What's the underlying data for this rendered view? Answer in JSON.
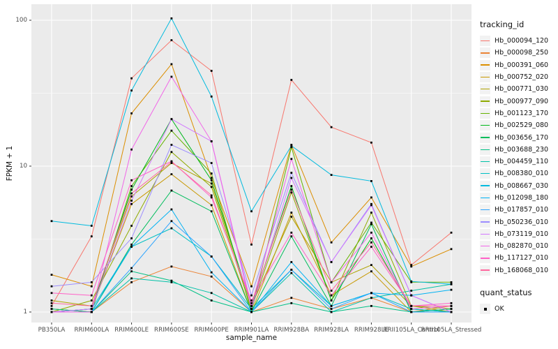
{
  "figure": {
    "ylabel": "FPKM + 1",
    "xlabel": "sample_name",
    "legend_title": "tracking_id",
    "quant_legend": {
      "title": "quant_status",
      "items": [
        {
          "label": "OK"
        }
      ]
    }
  },
  "chart_data": {
    "type": "line",
    "x_type": "categorical",
    "title": "",
    "xlabel": "sample_name",
    "ylabel": "FPKM + 1",
    "yscale": "log10",
    "y_ticks": [
      1,
      10,
      100
    ],
    "y_minor_ticks": [
      3.162,
      31.62
    ],
    "ylim": [
      0.85,
      128
    ],
    "grid": true,
    "legend_position": "right",
    "panel_bg": "#EBEBEB",
    "grid_color": "#FFFFFF",
    "point_color": "#000000",
    "point_shape": "square",
    "categories": [
      "PB350LA",
      "RRIM600LA",
      "RRIM600LE",
      "RRIM600SE",
      "RRIM600PE",
      "RRIM901LA",
      "RRIM928BA",
      "RRIM928LA",
      "RRIM928LE",
      "RRII105LA_Control",
      "RRII105LA_Stressed"
    ],
    "series": [
      {
        "name": "Hb_000094_120",
        "color": "#F8766D",
        "quant_status": "OK",
        "values": [
          1.1,
          3.3,
          40,
          73,
          45,
          2.9,
          39,
          18.5,
          14.5,
          2.1,
          3.5
        ]
      },
      {
        "name": "Hb_000098_250",
        "color": "#EB8335",
        "quant_status": "OK",
        "values": [
          1.05,
          1.0,
          1.6,
          2.05,
          1.75,
          1.0,
          1.25,
          1.05,
          1.25,
          1.0,
          1.1
        ]
      },
      {
        "name": "Hb_000391_060",
        "color": "#DB8E00",
        "quant_status": "OK",
        "values": [
          1.8,
          1.5,
          23,
          50,
          8.3,
          1.5,
          14,
          3.0,
          6.1,
          2.05,
          2.7
        ]
      },
      {
        "name": "Hb_000752_020",
        "color": "#C79800",
        "quant_status": "OK",
        "values": [
          1.0,
          1.05,
          5.5,
          8.8,
          5.4,
          1.0,
          4.8,
          1.3,
          1.9,
          1.0,
          1.05
        ]
      },
      {
        "name": "Hb_000771_030",
        "color": "#AEA200",
        "quant_status": "OK",
        "values": [
          1.2,
          1.1,
          6.2,
          10.5,
          7.6,
          1.1,
          4.5,
          1.6,
          2.1,
          1.1,
          1.0
        ]
      },
      {
        "name": "Hb_000977_090",
        "color": "#8FAA00",
        "quant_status": "OK",
        "values": [
          1.0,
          1.2,
          3.9,
          12.5,
          7.2,
          1.05,
          6.6,
          1.2,
          4.8,
          1.1,
          1.05
        ]
      },
      {
        "name": "Hb_001123_170",
        "color": "#64B200",
        "quant_status": "OK",
        "values": [
          1.05,
          1.0,
          7.3,
          17.5,
          8.9,
          1.0,
          13.5,
          1.6,
          4.1,
          1.6,
          1.6
        ]
      },
      {
        "name": "Hb_002529_080",
        "color": "#00B81B",
        "quant_status": "OK",
        "values": [
          1.0,
          1.05,
          6.9,
          21,
          8.0,
          1.1,
          7.3,
          1.2,
          3.2,
          1.05,
          1.0
        ]
      },
      {
        "name": "Hb_003656_170",
        "color": "#00BD5C",
        "quant_status": "OK",
        "values": [
          1.0,
          1.0,
          2.9,
          6.8,
          4.9,
          1.0,
          3.3,
          1.1,
          4.0,
          1.0,
          1.05
        ]
      },
      {
        "name": "Hb_003688_230",
        "color": "#00C085",
        "quant_status": "OK",
        "values": [
          1.05,
          1.0,
          1.9,
          1.64,
          1.2,
          1.0,
          1.15,
          1.0,
          1.1,
          1.0,
          1.05
        ]
      },
      {
        "name": "Hb_004459_110",
        "color": "#00C1A7",
        "quant_status": "OK",
        "values": [
          1.0,
          1.0,
          1.7,
          1.6,
          1.35,
          1.0,
          1.85,
          1.0,
          1.25,
          1.4,
          1.55
        ]
      },
      {
        "name": "Hb_008380_010",
        "color": "#00BFC4",
        "quant_status": "OK",
        "values": [
          1.0,
          1.0,
          2.8,
          3.75,
          2.4,
          1.05,
          1.95,
          1.1,
          1.35,
          1.05,
          1.0
        ]
      },
      {
        "name": "Hb_008667_030",
        "color": "#00BADE",
        "quant_status": "OK",
        "values": [
          4.2,
          3.9,
          33,
          103,
          30,
          4.9,
          13.8,
          8.7,
          7.9,
          1.62,
          1.55
        ]
      },
      {
        "name": "Hb_012098_180",
        "color": "#00B2F3",
        "quant_status": "OK",
        "values": [
          1.0,
          1.05,
          2.8,
          5.05,
          1.87,
          1.0,
          2.2,
          1.1,
          1.35,
          1.3,
          1.42
        ]
      },
      {
        "name": "Hb_017857_010",
        "color": "#29A3FF",
        "quant_status": "OK",
        "values": [
          1.0,
          1.0,
          2.0,
          4.2,
          2.4,
          1.0,
          1.95,
          1.05,
          1.35,
          1.0,
          1.0
        ]
      },
      {
        "name": "Hb_050236_010",
        "color": "#9C8DFF",
        "quant_status": "OK",
        "values": [
          1.5,
          1.6,
          3.2,
          14,
          10.5,
          1.3,
          9.0,
          2.2,
          5.5,
          1.3,
          1.0
        ]
      },
      {
        "name": "Hb_073119_010",
        "color": "#D277FF",
        "quant_status": "OK",
        "values": [
          1.0,
          1.05,
          5.8,
          21,
          14.8,
          1.05,
          8.3,
          2.2,
          5.4,
          1.3,
          1.0
        ]
      },
      {
        "name": "Hb_082870_010",
        "color": "#F166E8",
        "quant_status": "OK",
        "values": [
          1.0,
          1.0,
          13,
          41,
          14.8,
          1.1,
          11.2,
          1.6,
          3.5,
          1.05,
          1.1
        ]
      },
      {
        "name": "Hb_117127_010",
        "color": "#FF61C7",
        "quant_status": "OK",
        "values": [
          1.35,
          1.3,
          8.0,
          10.8,
          6.1,
          1.2,
          3.5,
          1.3,
          2.8,
          1.1,
          1.15
        ]
      },
      {
        "name": "Hb_168068_010",
        "color": "#FF689E",
        "quant_status": "OK",
        "values": [
          1.15,
          1.1,
          6.5,
          10.7,
          6.3,
          1.15,
          6.9,
          1.4,
          3.0,
          1.1,
          1.1
        ]
      }
    ]
  }
}
